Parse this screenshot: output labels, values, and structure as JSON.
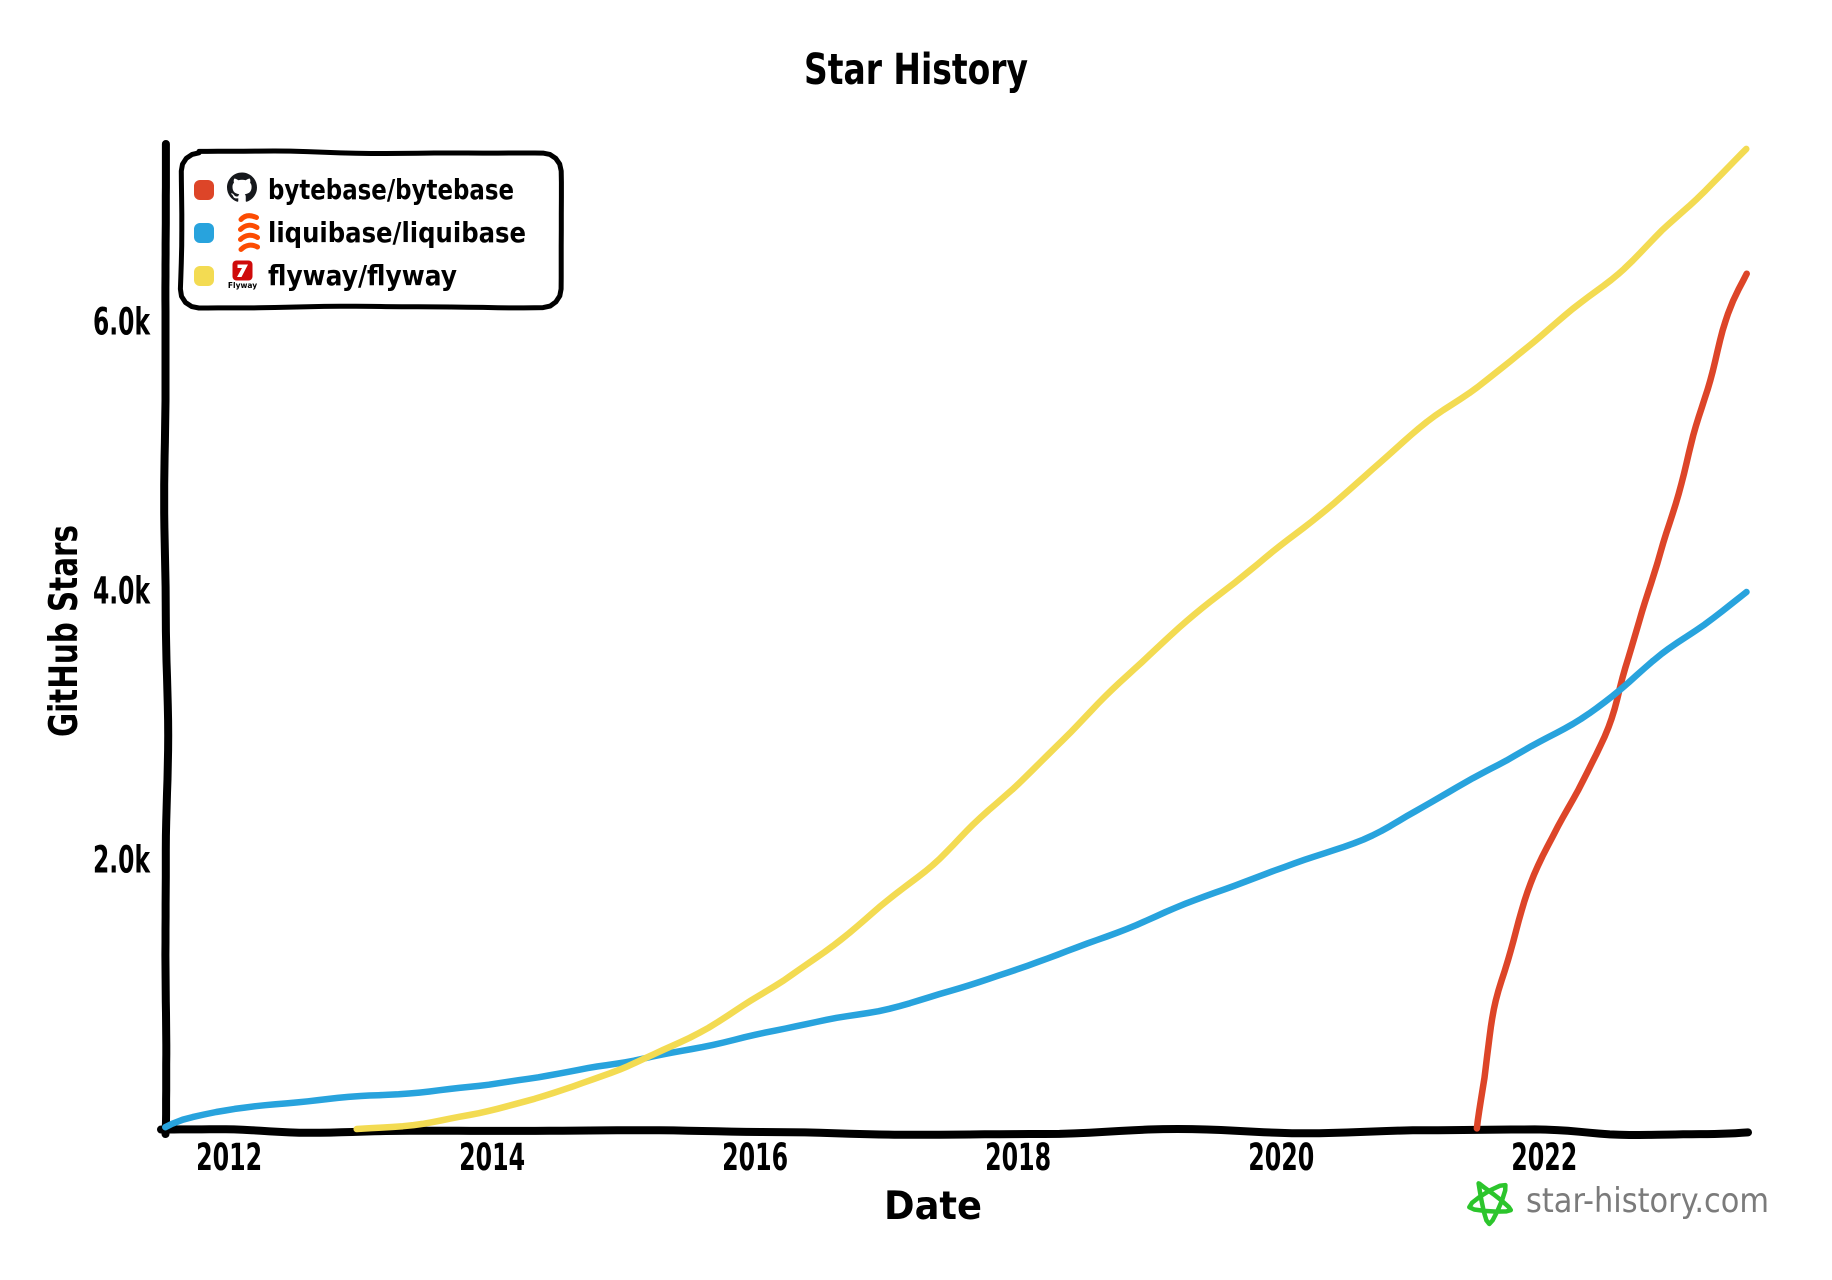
{
  "title": "Star History",
  "watermark": {
    "text": "star-history.com",
    "star_icon_color": "#2cc52c",
    "text_color": "#7b7b7b"
  },
  "colors": {
    "axis": "#000000",
    "text": "#000000",
    "legend_border": "#000000",
    "legend_background": "#ffffff"
  },
  "chart_data": {
    "type": "line",
    "title": "Star History",
    "xlabel": "Date",
    "ylabel": "GitHub Stars",
    "grid": false,
    "legend_position": "top-left",
    "xlim": [
      2011.52,
      2023.55
    ],
    "ylim": [
      0,
      7320
    ],
    "x_ticks": [
      {
        "value": 2012,
        "label": "2012"
      },
      {
        "value": 2014,
        "label": "2014"
      },
      {
        "value": 2016,
        "label": "2016"
      },
      {
        "value": 2018,
        "label": "2018"
      },
      {
        "value": 2020,
        "label": "2020"
      },
      {
        "value": 2022,
        "label": "2022"
      }
    ],
    "y_ticks": [
      {
        "value": 2000,
        "label": "2.0k"
      },
      {
        "value": 4000,
        "label": "4.0k"
      },
      {
        "value": 6000,
        "label": "6.0k"
      }
    ],
    "series": [
      {
        "name": "bytebase/bytebase",
        "icon": "github-logo",
        "color": "#dd4528",
        "points": [
          [
            2021.5,
            0
          ],
          [
            2021.53,
            300
          ],
          [
            2021.57,
            620
          ],
          [
            2021.63,
            950
          ],
          [
            2021.72,
            1250
          ],
          [
            2021.83,
            1620
          ],
          [
            2021.95,
            1950
          ],
          [
            2022.1,
            2250
          ],
          [
            2022.3,
            2600
          ],
          [
            2022.5,
            3050
          ],
          [
            2022.65,
            3500
          ],
          [
            2022.8,
            3980
          ],
          [
            2022.95,
            4500
          ],
          [
            2023.1,
            5020
          ],
          [
            2023.25,
            5560
          ],
          [
            2023.4,
            6060
          ],
          [
            2023.55,
            6350
          ]
        ]
      },
      {
        "name": "liquibase/liquibase",
        "icon": "liquibase-logo",
        "color": "#28a3dd",
        "points": [
          [
            2011.52,
            0
          ],
          [
            2011.65,
            60
          ],
          [
            2011.9,
            130
          ],
          [
            2012.2,
            175
          ],
          [
            2012.6,
            210
          ],
          [
            2013.0,
            245
          ],
          [
            2013.6,
            295
          ],
          [
            2014.2,
            355
          ],
          [
            2014.8,
            450
          ],
          [
            2015.3,
            560
          ],
          [
            2016.0,
            690
          ],
          [
            2016.7,
            830
          ],
          [
            2017.4,
            1000
          ],
          [
            2018.0,
            1180
          ],
          [
            2018.6,
            1400
          ],
          [
            2019.2,
            1630
          ],
          [
            2019.8,
            1860
          ],
          [
            2020.4,
            2070
          ],
          [
            2020.9,
            2280
          ],
          [
            2021.4,
            2560
          ],
          [
            2021.9,
            2850
          ],
          [
            2022.4,
            3130
          ],
          [
            2022.9,
            3520
          ],
          [
            2023.53,
            4000
          ]
        ]
      },
      {
        "name": "flyway/flyway",
        "icon": "flyway-logo",
        "color": "#f3db52",
        "points": [
          [
            2012.97,
            0
          ],
          [
            2013.4,
            40
          ],
          [
            2013.9,
            110
          ],
          [
            2014.4,
            230
          ],
          [
            2014.9,
            400
          ],
          [
            2015.3,
            580
          ],
          [
            2015.8,
            830
          ],
          [
            2016.4,
            1230
          ],
          [
            2017.0,
            1690
          ],
          [
            2017.45,
            2060
          ],
          [
            2017.9,
            2480
          ],
          [
            2018.5,
            3050
          ],
          [
            2019.1,
            3620
          ],
          [
            2019.7,
            4110
          ],
          [
            2020.3,
            4560
          ],
          [
            2021.0,
            5150
          ],
          [
            2021.8,
            5760
          ],
          [
            2022.6,
            6400
          ],
          [
            2023.1,
            6860
          ],
          [
            2023.53,
            7290
          ]
        ]
      }
    ]
  }
}
